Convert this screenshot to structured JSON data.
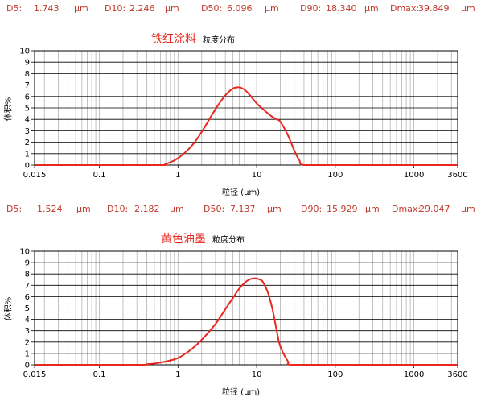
{
  "panel1": {
    "stats": {
      "d5_label": "D5:",
      "d5_value": "1.743",
      "d5_unit": "μm",
      "d10_label": "D10:",
      "d10_value": "2.246",
      "d10_unit": "μm",
      "d50_label": "D50:",
      "d50_value": "6.096",
      "d50_unit": "μm",
      "d90_label": "D90:",
      "d90_value": "18.340",
      "d90_unit": "μm",
      "dmax_label": "Dmax:",
      "dmax_value": "39.849",
      "dmax_unit": "μm"
    },
    "title": "铁红涂料",
    "subtitle": "粒度分布"
  },
  "panel2": {
    "stats": {
      "d5_label": "D5:",
      "d5_value": "1.524",
      "d5_unit": "μm",
      "d10_label": "D10:",
      "d10_value": "2.182",
      "d10_unit": "μm",
      "d50_label": "D50:",
      "d50_value": "7.137",
      "d50_unit": "μm",
      "d90_label": "D90:",
      "d90_value": "15.929",
      "d90_unit": "μm",
      "dmax_label": "Dmax:",
      "dmax_value": "29.047",
      "dmax_unit": "μm"
    },
    "title": "黄色油墨",
    "subtitle": "粒度分布"
  },
  "colors": {
    "curve": "#e8281e",
    "stats_text": "#c0392b",
    "grid": "#b4b4b4"
  },
  "chart_data": [
    {
      "type": "line",
      "title": "铁红涂料",
      "xlabel": "粒径 (μm)",
      "ylabel": "体积%",
      "x_scale": "log",
      "xlim": [
        0.015,
        3600
      ],
      "ylim": [
        0,
        10
      ],
      "x_tick_labels": [
        "0.015",
        "0.1",
        "1",
        "10",
        "100",
        "1000",
        "3600"
      ],
      "x_tick_values": [
        0.015,
        0.1,
        1,
        10,
        100,
        1000,
        3600
      ],
      "y_ticks": [
        0,
        1,
        2,
        3,
        4,
        5,
        6,
        7,
        8,
        9,
        10
      ],
      "grid": true,
      "series": [
        {
          "x": [
            0.015,
            0.5,
            0.7,
            1.0,
            1.5,
            2.0,
            3.0,
            4.0,
            5.0,
            6.0,
            7.0,
            8.0,
            10.0,
            12.0,
            14.0,
            16.0,
            18.0,
            20.0,
            25.0,
            30.0,
            35.0,
            40.0,
            100,
            3600
          ],
          "y": [
            0,
            0,
            0.1,
            0.6,
            1.7,
            2.9,
            4.9,
            6.1,
            6.7,
            6.8,
            6.6,
            6.2,
            5.4,
            4.9,
            4.5,
            4.2,
            4.0,
            3.8,
            2.6,
            1.3,
            0.4,
            0,
            0,
            0
          ]
        }
      ]
    },
    {
      "type": "line",
      "title": "黄色油墨",
      "xlabel": "粒径 (μm)",
      "ylabel": "体积%",
      "x_scale": "log",
      "xlim": [
        0.015,
        3600
      ],
      "ylim": [
        0,
        10
      ],
      "x_tick_labels": [
        "0.015",
        "0.1",
        "1",
        "10",
        "100",
        "1000",
        "3600"
      ],
      "x_tick_values": [
        0.015,
        0.1,
        1,
        10,
        100,
        1000,
        3600
      ],
      "y_ticks": [
        0,
        1,
        2,
        3,
        4,
        5,
        6,
        7,
        8,
        9,
        10
      ],
      "grid": true,
      "series": [
        {
          "x": [
            0.015,
            0.3,
            0.4,
            0.6,
            1.0,
            1.5,
            2.0,
            3.0,
            4.0,
            5.0,
            6.0,
            7.0,
            8.0,
            9.0,
            10.0,
            11.0,
            12.0,
            14.0,
            16.0,
            18.0,
            20.0,
            25.0,
            28.0,
            100,
            3600
          ],
          "y": [
            0,
            0,
            0.05,
            0.2,
            0.6,
            1.4,
            2.2,
            3.6,
            4.9,
            5.9,
            6.7,
            7.2,
            7.5,
            7.6,
            7.6,
            7.5,
            7.3,
            6.3,
            4.8,
            3.0,
            1.6,
            0.3,
            0,
            0,
            0
          ]
        }
      ]
    }
  ]
}
